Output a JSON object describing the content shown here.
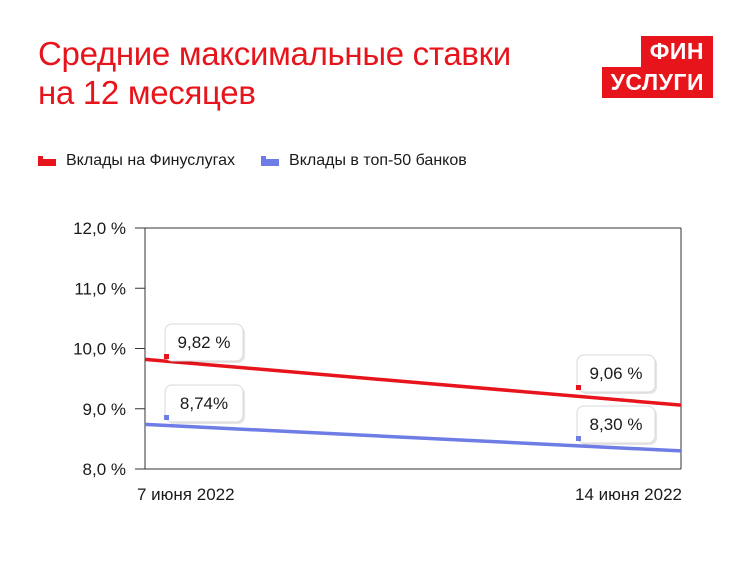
{
  "title": {
    "line1": "Средние максимальные ставки",
    "line2": "на 12 месяцев"
  },
  "logo": {
    "line1": "ФИН",
    "line2": "УСЛУГИ"
  },
  "colors": {
    "accent": "#e8141c",
    "series1": "#e8141c",
    "series2": "#6e7ce6"
  },
  "chart_data": {
    "type": "line",
    "title": "Средние максимальные ставки на 12 месяцев",
    "x": [
      "7 июня 2022",
      "14 июня 2022"
    ],
    "ylim": [
      8.0,
      12.0
    ],
    "yticks": [
      "8,0 %",
      "9,0 %",
      "10,0 %",
      "11,0 %",
      "12,0 %"
    ],
    "ytick_values": [
      8.0,
      9.0,
      10.0,
      11.0,
      12.0
    ],
    "legend_position": "top-left",
    "series": [
      {
        "name": "Вклады на Финуслугах",
        "values": [
          9.82,
          9.06
        ],
        "labels": [
          "9,82 %",
          "9,06 %"
        ],
        "color": "#e8141c"
      },
      {
        "name": "Вклады в топ-50 банков",
        "values": [
          8.74,
          8.3
        ],
        "labels": [
          "8,74%",
          "8,30 %"
        ],
        "color": "#6e7ce6"
      }
    ]
  }
}
